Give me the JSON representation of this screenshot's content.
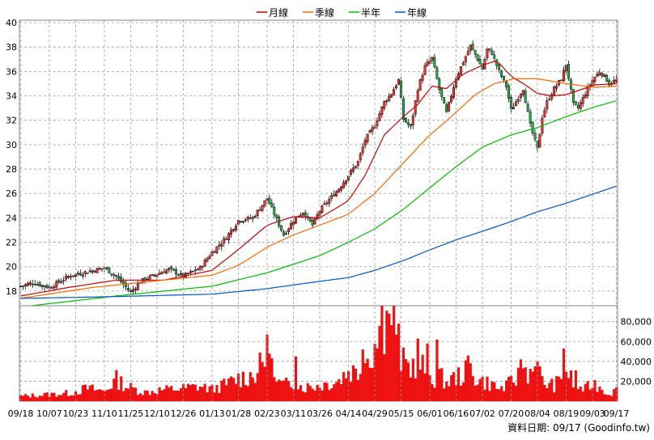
{
  "legend": [
    {
      "label": "月線",
      "color": "#cc0000"
    },
    {
      "label": "季線",
      "color": "#ff6600"
    },
    {
      "label": "半年",
      "color": "#00bb00"
    },
    {
      "label": "年線",
      "color": "#0055cc"
    }
  ],
  "footer": {
    "text": "資料日期: 09/17  (Goodinfo.tw)"
  },
  "chart_data": [
    {
      "type": "candlestick",
      "y_ticks": [
        18,
        20,
        22,
        24,
        26,
        28,
        30,
        32,
        34,
        36,
        38,
        40
      ],
      "ylim": [
        16.8,
        40.2
      ],
      "x_tick_labels": [
        "09/18",
        "10/07",
        "10/23",
        "11/10",
        "11/25",
        "12/10",
        "12/26",
        "01/13",
        "01/28",
        "02/23",
        "03/11",
        "03/26",
        "04/14",
        "04/29",
        "05/15",
        "06/01",
        "06/16",
        "07/02",
        "07/20",
        "08/04",
        "08/19",
        "09/03",
        "09/17"
      ],
      "x_tick_index": [
        0,
        12,
        23,
        35,
        46,
        57,
        68,
        80,
        91,
        103,
        114,
        125,
        137,
        148,
        159,
        171,
        182,
        193,
        205,
        216,
        228,
        239,
        249
      ],
      "n_days": 250,
      "anchors": [
        [
          0,
          18.4
        ],
        [
          5,
          18.7
        ],
        [
          12,
          18.3
        ],
        [
          20,
          19.2
        ],
        [
          28,
          19.6
        ],
        [
          35,
          19.9
        ],
        [
          40,
          19.2
        ],
        [
          46,
          17.9
        ],
        [
          50,
          18.8
        ],
        [
          57,
          19.4
        ],
        [
          62,
          19.8
        ],
        [
          68,
          19.2
        ],
        [
          75,
          19.9
        ],
        [
          80,
          21.2
        ],
        [
          86,
          22.4
        ],
        [
          91,
          23.8
        ],
        [
          97,
          24.0
        ],
        [
          103,
          25.6
        ],
        [
          106,
          24.3
        ],
        [
          110,
          22.6
        ],
        [
          114,
          23.8
        ],
        [
          118,
          24.5
        ],
        [
          122,
          23.4
        ],
        [
          125,
          24.6
        ],
        [
          129,
          25.5
        ],
        [
          133,
          26.4
        ],
        [
          137,
          27.5
        ],
        [
          141,
          28.6
        ],
        [
          144,
          30.4
        ],
        [
          148,
          31.6
        ],
        [
          152,
          33.5
        ],
        [
          155,
          34.2
        ],
        [
          158,
          35.3
        ],
        [
          160,
          32.1
        ],
        [
          163,
          31.4
        ],
        [
          166,
          34.6
        ],
        [
          169,
          36.4
        ],
        [
          172,
          37.1
        ],
        [
          175,
          34.5
        ],
        [
          178,
          32.6
        ],
        [
          182,
          35.5
        ],
        [
          185,
          36.8
        ],
        [
          188,
          38.1
        ],
        [
          190,
          37.4
        ],
        [
          193,
          36.2
        ],
        [
          195,
          37.8
        ],
        [
          197,
          37.5
        ],
        [
          200,
          36.0
        ],
        [
          203,
          34.8
        ],
        [
          205,
          32.8
        ],
        [
          208,
          33.9
        ],
        [
          210,
          34.6
        ],
        [
          213,
          31.6
        ],
        [
          216,
          29.6
        ],
        [
          218,
          32.3
        ],
        [
          220,
          33.5
        ],
        [
          223,
          34.6
        ],
        [
          226,
          35.4
        ],
        [
          228,
          36.6
        ],
        [
          231,
          33.3
        ],
        [
          233,
          33.0
        ],
        [
          236,
          34.2
        ],
        [
          239,
          35.3
        ],
        [
          242,
          36.0
        ],
        [
          244,
          35.6
        ],
        [
          246,
          35.0
        ],
        [
          249,
          35.3
        ]
      ],
      "ma": {
        "月線": [
          [
            0,
            17.6
          ],
          [
            20,
            18.3
          ],
          [
            40,
            18.9
          ],
          [
            60,
            18.9
          ],
          [
            80,
            19.7
          ],
          [
            91,
            21.4
          ],
          [
            103,
            23.4
          ],
          [
            114,
            24.1
          ],
          [
            125,
            24.0
          ],
          [
            137,
            25.4
          ],
          [
            144,
            27.5
          ],
          [
            152,
            30.8
          ],
          [
            160,
            32.3
          ],
          [
            166,
            33.3
          ],
          [
            172,
            34.8
          ],
          [
            178,
            34.6
          ],
          [
            185,
            35.8
          ],
          [
            193,
            36.5
          ],
          [
            199,
            36.9
          ],
          [
            205,
            35.6
          ],
          [
            211,
            34.9
          ],
          [
            216,
            34.2
          ],
          [
            222,
            34.0
          ],
          [
            228,
            34.1
          ],
          [
            234,
            34.5
          ],
          [
            240,
            34.9
          ],
          [
            249,
            35.0
          ]
        ],
        "季線": [
          [
            0,
            17.4
          ],
          [
            30,
            18.3
          ],
          [
            60,
            18.9
          ],
          [
            80,
            19.3
          ],
          [
            91,
            20.1
          ],
          [
            103,
            21.6
          ],
          [
            114,
            22.6
          ],
          [
            125,
            23.4
          ],
          [
            137,
            24.3
          ],
          [
            148,
            26.0
          ],
          [
            160,
            28.5
          ],
          [
            170,
            30.6
          ],
          [
            180,
            32.3
          ],
          [
            190,
            34.1
          ],
          [
            198,
            35.0
          ],
          [
            206,
            35.4
          ],
          [
            216,
            35.4
          ],
          [
            228,
            35.0
          ],
          [
            240,
            34.7
          ],
          [
            249,
            34.8
          ]
        ],
        "半年": [
          [
            0,
            16.7
          ],
          [
            40,
            17.6
          ],
          [
            80,
            18.4
          ],
          [
            103,
            19.5
          ],
          [
            125,
            20.9
          ],
          [
            137,
            22.0
          ],
          [
            148,
            23.1
          ],
          [
            160,
            24.7
          ],
          [
            170,
            26.3
          ],
          [
            182,
            28.2
          ],
          [
            193,
            29.8
          ],
          [
            205,
            30.8
          ],
          [
            216,
            31.4
          ],
          [
            228,
            32.3
          ],
          [
            240,
            33.1
          ],
          [
            249,
            33.6
          ]
        ],
        "年線": [
          [
            0,
            17.4
          ],
          [
            40,
            17.55
          ],
          [
            80,
            17.75
          ],
          [
            103,
            18.2
          ],
          [
            125,
            18.8
          ],
          [
            137,
            19.1
          ],
          [
            148,
            19.7
          ],
          [
            160,
            20.5
          ],
          [
            170,
            21.3
          ],
          [
            182,
            22.2
          ],
          [
            193,
            22.9
          ],
          [
            205,
            23.7
          ],
          [
            216,
            24.5
          ],
          [
            228,
            25.2
          ],
          [
            240,
            26.0
          ],
          [
            249,
            26.6
          ]
        ]
      }
    },
    {
      "type": "bar",
      "y_ticks": [
        20000,
        40000,
        60000,
        80000
      ],
      "y_tick_labels": [
        "20,000",
        "40,000",
        "60,000",
        "80,000"
      ],
      "ylim": [
        0,
        96000
      ],
      "vol_anchors": [
        [
          0,
          5000
        ],
        [
          20,
          8000
        ],
        [
          28,
          13000
        ],
        [
          35,
          10000
        ],
        [
          40,
          22000
        ],
        [
          45,
          14000
        ],
        [
          52,
          9000
        ],
        [
          57,
          11000
        ],
        [
          68,
          13000
        ],
        [
          75,
          15000
        ],
        [
          80,
          12000
        ],
        [
          86,
          17000
        ],
        [
          91,
          23000
        ],
        [
          97,
          26000
        ],
        [
          103,
          42000
        ],
        [
          106,
          20000
        ],
        [
          110,
          16000
        ],
        [
          114,
          19000
        ],
        [
          118,
          14000
        ],
        [
          125,
          16000
        ],
        [
          133,
          21000
        ],
        [
          137,
          31000
        ],
        [
          141,
          29000
        ],
        [
          144,
          42000
        ],
        [
          148,
          56000
        ],
        [
          152,
          72000
        ],
        [
          155,
          60000
        ],
        [
          158,
          48000
        ],
        [
          160,
          38000
        ],
        [
          163,
          34000
        ],
        [
          166,
          42000
        ],
        [
          169,
          31000
        ],
        [
          172,
          22000
        ],
        [
          175,
          25000
        ],
        [
          178,
          19000
        ],
        [
          182,
          24000
        ],
        [
          185,
          27000
        ],
        [
          188,
          32000
        ],
        [
          190,
          24000
        ],
        [
          193,
          20000
        ],
        [
          197,
          17000
        ],
        [
          200,
          12000
        ],
        [
          203,
          15000
        ],
        [
          205,
          19000
        ],
        [
          208,
          25000
        ],
        [
          210,
          32000
        ],
        [
          213,
          30000
        ],
        [
          216,
          33000
        ],
        [
          218,
          20000
        ],
        [
          220,
          17000
        ],
        [
          223,
          16000
        ],
        [
          226,
          21000
        ],
        [
          228,
          31000
        ],
        [
          231,
          18000
        ],
        [
          233,
          14000
        ],
        [
          236,
          12000
        ],
        [
          239,
          18000
        ],
        [
          242,
          15000
        ],
        [
          244,
          10000
        ],
        [
          246,
          8000
        ],
        [
          249,
          11000
        ]
      ],
      "spikes": [
        [
          103,
          67000
        ],
        [
          105,
          43000
        ],
        [
          115,
          45000
        ],
        [
          143,
          52000
        ],
        [
          151,
          96000
        ],
        [
          153,
          91000
        ],
        [
          154,
          88000
        ],
        [
          156,
          97000
        ],
        [
          158,
          78000
        ],
        [
          166,
          63000
        ],
        [
          170,
          58000
        ],
        [
          174,
          62000
        ],
        [
          187,
          46000
        ],
        [
          209,
          42000
        ],
        [
          215,
          35000
        ],
        [
          227,
          53000
        ],
        [
          232,
          31000
        ]
      ]
    }
  ]
}
